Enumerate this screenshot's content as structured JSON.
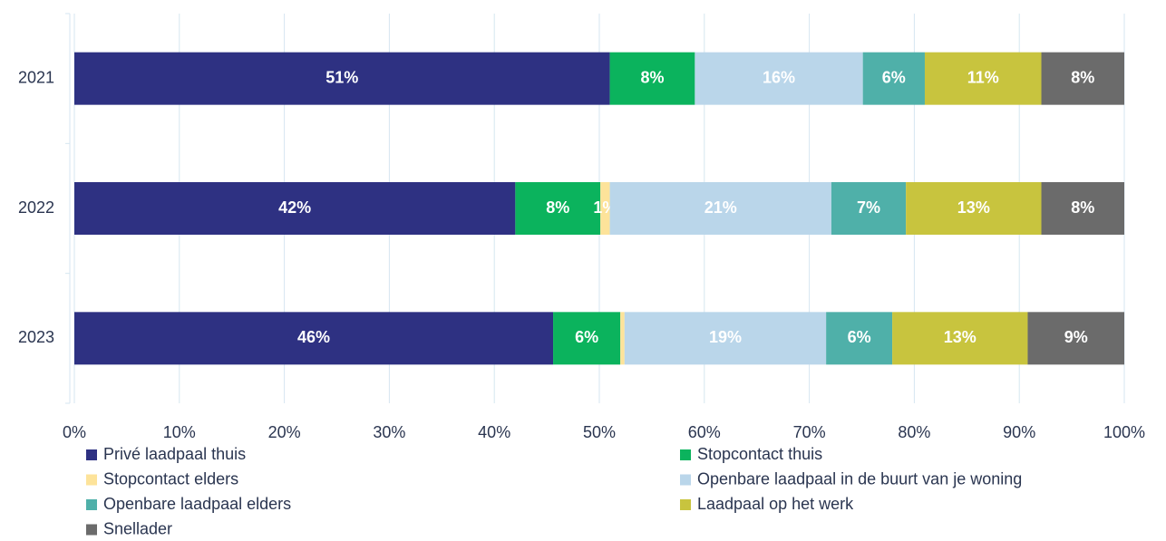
{
  "chart_data": {
    "type": "stacked-barh",
    "categories": [
      "2021",
      "2022",
      "2023"
    ],
    "series": [
      {
        "name": "Privé laadpaal thuis",
        "color": "#2e3182",
        "values": [
          51,
          42,
          45.6
        ],
        "value_labels": [
          "51%",
          "42%",
          "46%"
        ]
      },
      {
        "name": "Stopcontact thuis",
        "color": "#0bb35d",
        "values": [
          8.1,
          8.1,
          6.4
        ],
        "value_labels": [
          "8%",
          "8%",
          "6%"
        ]
      },
      {
        "name": "Stopcontact elders",
        "color": "#fde39a",
        "values": [
          0,
          0.9,
          0.4
        ],
        "value_labels": [
          null,
          "1%",
          null
        ]
      },
      {
        "name": "Openbare laadpaal in de buurt van je woning",
        "color": "#bad6ea",
        "values": [
          16,
          21.1,
          19.2
        ],
        "value_labels": [
          "16%",
          "21%",
          "19%"
        ]
      },
      {
        "name": "Openbare laadpaal elders",
        "color": "#4fb0a9",
        "values": [
          5.9,
          7.1,
          6.3
        ],
        "value_labels": [
          "6%",
          "7%",
          "6%"
        ]
      },
      {
        "name": "Laadpaal op het werk",
        "color": "#c8c43e",
        "values": [
          11.1,
          12.9,
          12.9
        ],
        "value_labels": [
          "11%",
          "13%",
          "13%"
        ]
      },
      {
        "name": "Snellader",
        "color": "#6b6b6b",
        "values": [
          7.9,
          7.9,
          9.2
        ],
        "value_labels": [
          "8%",
          "8%",
          "9%"
        ]
      }
    ],
    "xlim": [
      0,
      100
    ],
    "xticks": [
      {
        "value": 0,
        "label": "0%"
      },
      {
        "value": 10,
        "label": "10%"
      },
      {
        "value": 20,
        "label": "20%"
      },
      {
        "value": 30,
        "label": "30%"
      },
      {
        "value": 40,
        "label": "40%"
      },
      {
        "value": 50,
        "label": "50%"
      },
      {
        "value": 60,
        "label": "60%"
      },
      {
        "value": 70,
        "label": "70%"
      },
      {
        "value": 80,
        "label": "80%"
      },
      {
        "value": 90,
        "label": "90%"
      },
      {
        "value": 100,
        "label": "100%"
      }
    ],
    "grid": true,
    "legend": "bottom"
  }
}
